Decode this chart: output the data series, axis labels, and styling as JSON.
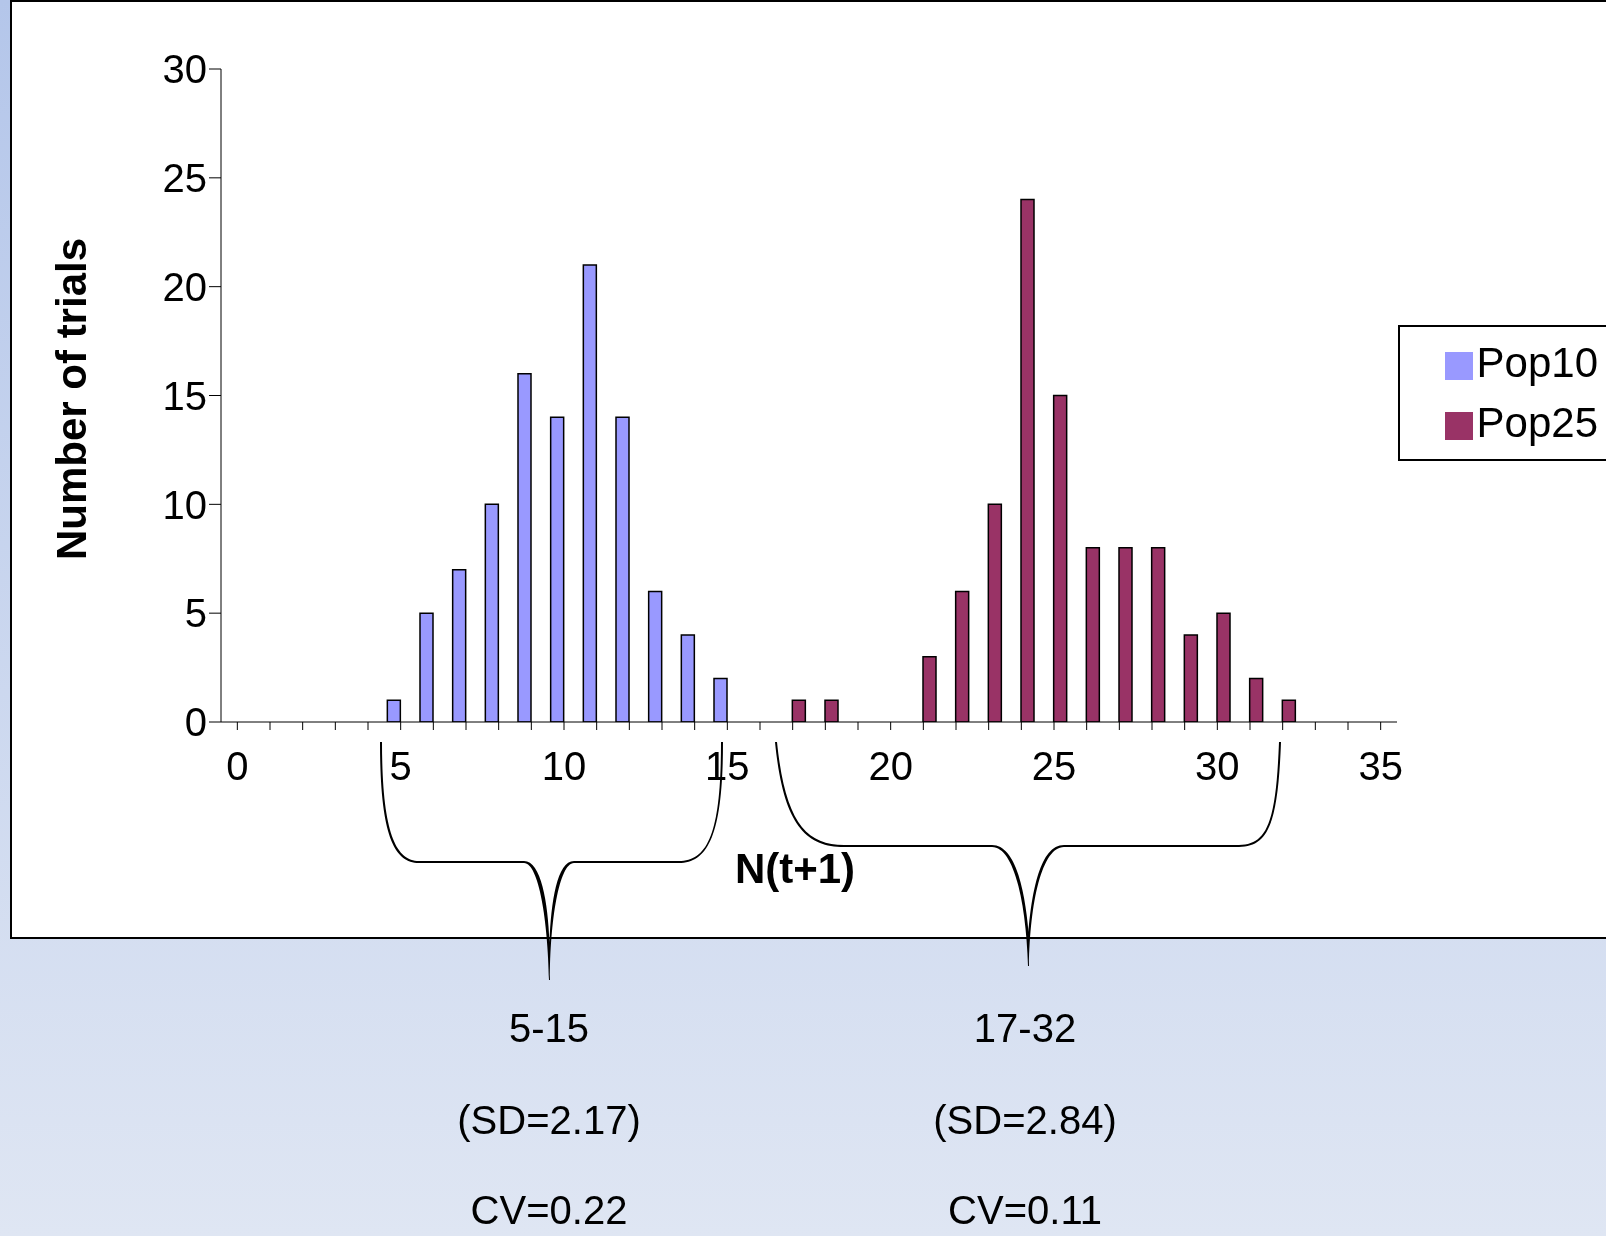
{
  "chart_data": {
    "type": "bar",
    "xlabel": "N(t+1)",
    "ylabel": "Number of trials",
    "categories": [
      "0",
      null,
      null,
      null,
      null,
      "5",
      null,
      null,
      null,
      null,
      "10",
      null,
      null,
      null,
      null,
      "15",
      null,
      null,
      null,
      null,
      "20",
      null,
      null,
      null,
      null,
      "25",
      null,
      null,
      null,
      null,
      "30",
      null,
      null,
      null,
      null,
      "35"
    ],
    "series": [
      {
        "name": "Pop10",
        "color": "#9999ff",
        "values": [
          0,
          0,
          0,
          0,
          0,
          1,
          5,
          7,
          10,
          16,
          14,
          21,
          14,
          6,
          4,
          2,
          0,
          0,
          0,
          0,
          0,
          0,
          0,
          0,
          0,
          0,
          0,
          0,
          0,
          0,
          0,
          0,
          0,
          0,
          0,
          0
        ]
      },
      {
        "name": "Pop25",
        "color": "#993366",
        "values": [
          0,
          0,
          0,
          0,
          0,
          0,
          0,
          0,
          0,
          0,
          0,
          0,
          0,
          0,
          0,
          0,
          0,
          1,
          1,
          0,
          0,
          3,
          6,
          10,
          24,
          15,
          8,
          8,
          8,
          4,
          5,
          2,
          1,
          0,
          0,
          0
        ]
      }
    ],
    "ylim": [
      0,
      30
    ],
    "yticks": [
      0,
      5,
      10,
      15,
      20,
      25,
      30
    ],
    "grid": false,
    "legend": "right",
    "annotations": [
      "5-15",
      "(SD=2.17)",
      "CV=0.22",
      "17-32",
      "(SD=2.84)",
      "CV=0.11"
    ]
  }
}
